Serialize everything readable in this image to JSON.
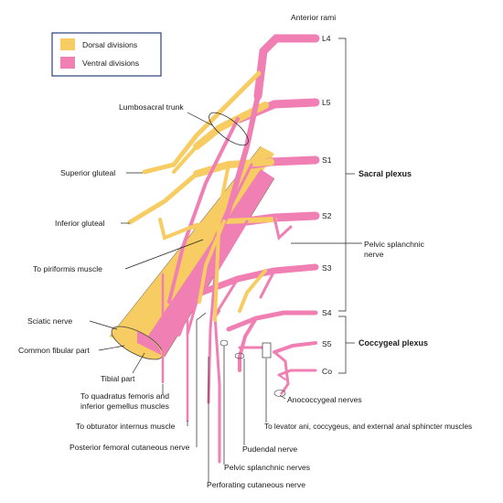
{
  "legend": {
    "dorsal": {
      "label": "Dorsal divisions",
      "color": "#f7cc63"
    },
    "ventral": {
      "label": "Ventral divisions",
      "color": "#f07fb3"
    }
  },
  "header": {
    "anterior_rami": "Anterior rami"
  },
  "roots": [
    "L4",
    "L5",
    "S1",
    "S2",
    "S3",
    "S4",
    "S5",
    "Co"
  ],
  "plexus": {
    "sacral": "Sacral plexus",
    "coccygeal": "Coccygeal plexus"
  },
  "labels": {
    "lumbosacral_trunk": "Lumbosacral trunk",
    "superior_gluteal": "Superior gluteal",
    "inferior_gluteal": "Inferior gluteal",
    "to_piriformis": "To piriformis muscle",
    "sciatic_nerve": "Sciatic nerve",
    "common_fibular": "Common fibular part",
    "tibial_part": "Tibial part",
    "quadratus_line1": "To quadratus femoris and",
    "quadratus_line2": "inferior gemellus muscles",
    "obturator_internus": "To obturator internus muscle",
    "posterior_femoral": "Posterior femoral cutaneous nerve",
    "pudendal": "Pudendal nerve",
    "pelvic_splanchnic_nerves": "Pelvic splanchnic nerves",
    "perforating_cutaneous": "Perforating cutaneous nerve",
    "pelvic_splanchnic_line1": "Pelvic splanchnic",
    "pelvic_splanchnic_line2": "nerve",
    "levator_ani": "To levator ani, coccygeus, and external anal sphincter muscles",
    "anococcygeal": "Anococcygeal nerves"
  }
}
